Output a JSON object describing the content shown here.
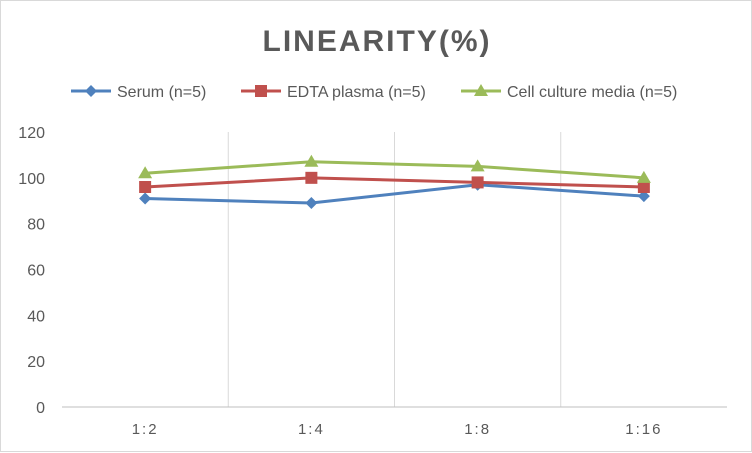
{
  "chart_data": {
    "type": "line",
    "title": "LINEARITY(%)",
    "categories": [
      "1:2",
      "1:4",
      "1:8",
      "1:16"
    ],
    "series": [
      {
        "name": "Serum (n=5)",
        "values": [
          91,
          89,
          97,
          92
        ],
        "color": "#4f81bd",
        "marker": "diamond"
      },
      {
        "name": "EDTA plasma (n=5)",
        "values": [
          96,
          100,
          98,
          96
        ],
        "color": "#c0504d",
        "marker": "square"
      },
      {
        "name": "Cell culture media (n=5)",
        "values": [
          102,
          107,
          105,
          100
        ],
        "color": "#9bbb59",
        "marker": "triangle"
      }
    ],
    "yticks": [
      "0",
      "20",
      "40",
      "60",
      "80",
      "100",
      "120"
    ],
    "ylim": [
      0,
      120
    ],
    "xlabel": "",
    "ylabel": "",
    "grid": "vertical",
    "legend": "top"
  }
}
